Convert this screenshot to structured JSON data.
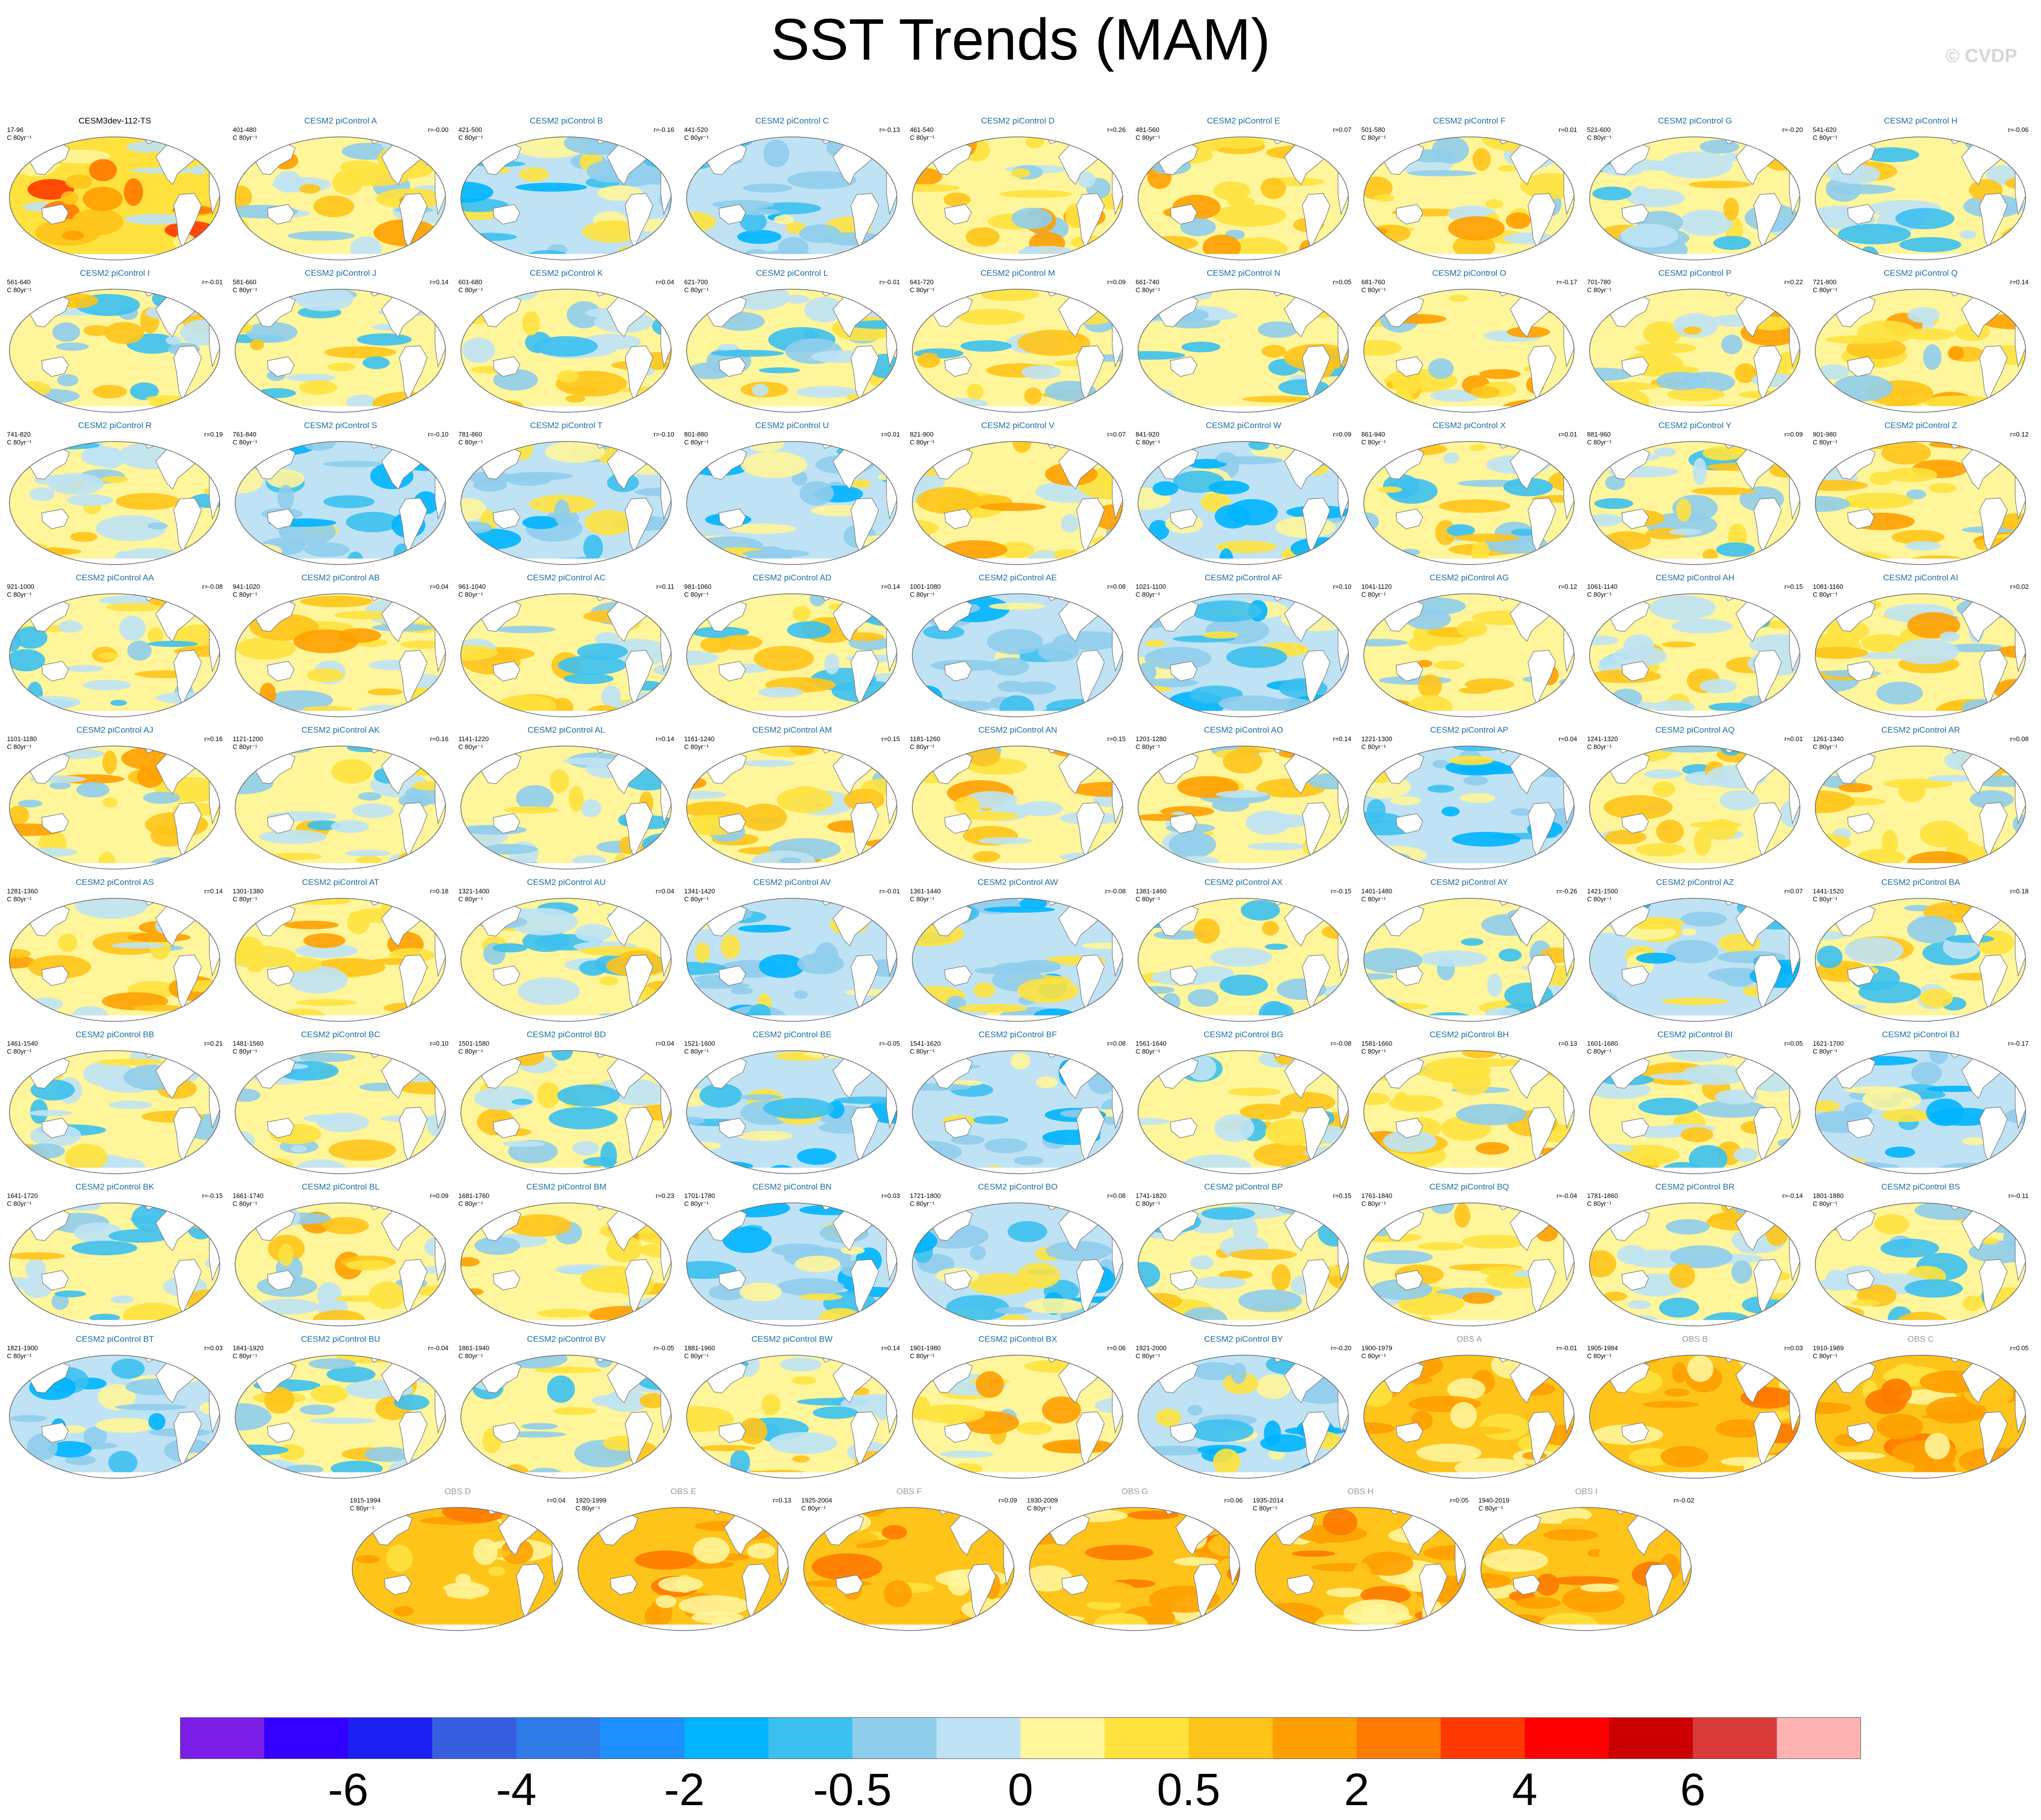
{
  "figure": {
    "title": "SST Trends (MAM)",
    "copyright": "© CVDP"
  },
  "chart_data": {
    "type": "heatmap",
    "title": "SST Trends (MAM)",
    "projection": "global map (Robinson-like), Pacific-centered",
    "units": "C 80yr⁻¹",
    "colorbar": {
      "tick_labels": [
        "-6",
        "-4",
        "-2",
        "-0.5",
        "0",
        "0.5",
        "2",
        "4",
        "6"
      ],
      "tick_positions_boundary_index": [
        2,
        4,
        6,
        8,
        10,
        12,
        14,
        16,
        18
      ],
      "colors": [
        "#7b1fe8",
        "#3300ff",
        "#1a20f2",
        "#385ee0",
        "#2f7be8",
        "#1e90ff",
        "#00b4ff",
        "#3cc0f0",
        "#8fcdec",
        "#bfe3f5",
        "#fff59a",
        "#ffe23e",
        "#ffc41a",
        "#ffa000",
        "#ff7a00",
        "#ff3a00",
        "#ff0000",
        "#cc0000",
        "#d93a3a",
        "#ffb3b3"
      ]
    },
    "panels": [
      {
        "title": "CESM3dev-112-TS",
        "years": "17-96",
        "units": "C 80yr⁻¹",
        "r": "",
        "kind": "cesm3",
        "pattern": "warm"
      },
      {
        "title": "CESM2 piControl A",
        "years": "401-480",
        "units": "C 80yr⁻¹",
        "r": "r=-0.00",
        "kind": "ctrl",
        "pattern": "mixwarm"
      },
      {
        "title": "CESM2 piControl B",
        "years": "421-500",
        "units": "C 80yr⁻¹",
        "r": "r=-0.16",
        "kind": "ctrl",
        "pattern": "cool"
      },
      {
        "title": "CESM2 piControl C",
        "years": "441-520",
        "units": "C 80yr⁻¹",
        "r": "r=-0.13",
        "kind": "ctrl",
        "pattern": "cool"
      },
      {
        "title": "CESM2 piControl D",
        "years": "461-540",
        "units": "C 80yr⁻¹",
        "r": "r=0.26",
        "kind": "ctrl",
        "pattern": "mixwarm"
      },
      {
        "title": "CESM2 piControl E",
        "years": "481-560",
        "units": "C 80yr⁻¹",
        "r": "r=0.07",
        "kind": "ctrl",
        "pattern": "mixwarm"
      },
      {
        "title": "CESM2 piControl F",
        "years": "501-580",
        "units": "C 80yr⁻¹",
        "r": "r=0.01",
        "kind": "ctrl",
        "pattern": "mixwarm"
      },
      {
        "title": "CESM2 piControl G",
        "years": "521-600",
        "units": "C 80yr⁻¹",
        "r": "r=-0.20",
        "kind": "ctrl",
        "pattern": "mix"
      },
      {
        "title": "CESM2 piControl H",
        "years": "541-620",
        "units": "C 80yr⁻¹",
        "r": "r=-0.06",
        "kind": "ctrl",
        "pattern": "mix"
      },
      {
        "title": "CESM2 piControl I",
        "years": "561-640",
        "units": "C 80yr⁻¹",
        "r": "r=-0.01",
        "kind": "ctrl",
        "pattern": "mix"
      },
      {
        "title": "CESM2 piControl J",
        "years": "581-660",
        "units": "C 80yr⁻¹",
        "r": "r=0.14",
        "kind": "ctrl",
        "pattern": "mix"
      },
      {
        "title": "CESM2 piControl K",
        "years": "601-680",
        "units": "C 80yr⁻¹",
        "r": "r=0.04",
        "kind": "ctrl",
        "pattern": "mix"
      },
      {
        "title": "CESM2 piControl L",
        "years": "621-700",
        "units": "C 80yr⁻¹",
        "r": "r=-0.01",
        "kind": "ctrl",
        "pattern": "mix"
      },
      {
        "title": "CESM2 piControl M",
        "years": "641-720",
        "units": "C 80yr⁻¹",
        "r": "r=0.09",
        "kind": "ctrl",
        "pattern": "mix"
      },
      {
        "title": "CESM2 piControl N",
        "years": "661-740",
        "units": "C 80yr⁻¹",
        "r": "r=0.05",
        "kind": "ctrl",
        "pattern": "mix"
      },
      {
        "title": "CESM2 piControl O",
        "years": "681-760",
        "units": "C 80yr⁻¹",
        "r": "r=-0.17",
        "kind": "ctrl",
        "pattern": "mixwarm"
      },
      {
        "title": "CESM2 piControl P",
        "years": "701-780",
        "units": "C 80yr⁻¹",
        "r": "r=0.22",
        "kind": "ctrl",
        "pattern": "mixwarm"
      },
      {
        "title": "CESM2 piControl Q",
        "years": "721-800",
        "units": "C 80yr⁻¹",
        "r": "r=0.14",
        "kind": "ctrl",
        "pattern": "mixwarm"
      },
      {
        "title": "CESM2 piControl R",
        "years": "741-820",
        "units": "C 80yr⁻¹",
        "r": "r=0.19",
        "kind": "ctrl",
        "pattern": "mix"
      },
      {
        "title": "CESM2 piControl S",
        "years": "761-840",
        "units": "C 80yr⁻¹",
        "r": "r=-0.10",
        "kind": "ctrl",
        "pattern": "cool"
      },
      {
        "title": "CESM2 piControl T",
        "years": "781-860",
        "units": "C 80yr⁻¹",
        "r": "r=-0.10",
        "kind": "ctrl",
        "pattern": "cool"
      },
      {
        "title": "CESM2 piControl U",
        "years": "801-880",
        "units": "C 80yr⁻¹",
        "r": "r=0.01",
        "kind": "ctrl",
        "pattern": "cool"
      },
      {
        "title": "CESM2 piControl V",
        "years": "821-900",
        "units": "C 80yr⁻¹",
        "r": "r=0.07",
        "kind": "ctrl",
        "pattern": "mixwarm"
      },
      {
        "title": "CESM2 piControl W",
        "years": "841-920",
        "units": "C 80yr⁻¹",
        "r": "r=0.09",
        "kind": "ctrl",
        "pattern": "cool"
      },
      {
        "title": "CESM2 piControl X",
        "years": "861-940",
        "units": "C 80yr⁻¹",
        "r": "r=0.01",
        "kind": "ctrl",
        "pattern": "mix"
      },
      {
        "title": "CESM2 piControl Y",
        "years": "881-960",
        "units": "C 80yr⁻¹",
        "r": "r=0.09",
        "kind": "ctrl",
        "pattern": "mix"
      },
      {
        "title": "CESM2 piControl Z",
        "years": "901-980",
        "units": "C 80yr⁻¹",
        "r": "r=0.12",
        "kind": "ctrl",
        "pattern": "mixwarm"
      },
      {
        "title": "CESM2 piControl AA",
        "years": "921-1000",
        "units": "C 80yr⁻¹",
        "r": "r=-0.08",
        "kind": "ctrl",
        "pattern": "mix"
      },
      {
        "title": "CESM2 piControl AB",
        "years": "941-1020",
        "units": "C 80yr⁻¹",
        "r": "r=0.04",
        "kind": "ctrl",
        "pattern": "mixwarm"
      },
      {
        "title": "CESM2 piControl AC",
        "years": "961-1040",
        "units": "C 80yr⁻¹",
        "r": "r=0.11",
        "kind": "ctrl",
        "pattern": "mix"
      },
      {
        "title": "CESM2 piControl AD",
        "years": "981-1060",
        "units": "C 80yr⁻¹",
        "r": "r=0.14",
        "kind": "ctrl",
        "pattern": "mix"
      },
      {
        "title": "CESM2 piControl AE",
        "years": "1001-1080",
        "units": "C 80yr⁻¹",
        "r": "r=0.08",
        "kind": "ctrl",
        "pattern": "cool"
      },
      {
        "title": "CESM2 piControl AF",
        "years": "1021-1100",
        "units": "C 80yr⁻¹",
        "r": "r=0.10",
        "kind": "ctrl",
        "pattern": "cool"
      },
      {
        "title": "CESM2 piControl AG",
        "years": "1041-1120",
        "units": "C 80yr⁻¹",
        "r": "r=0.12",
        "kind": "ctrl",
        "pattern": "mixwarm"
      },
      {
        "title": "CESM2 piControl AH",
        "years": "1061-1140",
        "units": "C 80yr⁻¹",
        "r": "r=0.15",
        "kind": "ctrl",
        "pattern": "mix"
      },
      {
        "title": "CESM2 piControl AI",
        "years": "1081-1160",
        "units": "C 80yr⁻¹",
        "r": "r=0.02",
        "kind": "ctrl",
        "pattern": "mixwarm"
      },
      {
        "title": "CESM2 piControl AJ",
        "years": "1101-1180",
        "units": "C 80yr⁻¹",
        "r": "r=0.16",
        "kind": "ctrl",
        "pattern": "mixwarm"
      },
      {
        "title": "CESM2 piControl AK",
        "years": "1121-1200",
        "units": "C 80yr⁻¹",
        "r": "r=0.16",
        "kind": "ctrl",
        "pattern": "mix"
      },
      {
        "title": "CESM2 piControl AL",
        "years": "1141-1220",
        "units": "C 80yr⁻¹",
        "r": "r=0.14",
        "kind": "ctrl",
        "pattern": "mix"
      },
      {
        "title": "CESM2 piControl AM",
        "years": "1161-1240",
        "units": "C 80yr⁻¹",
        "r": "r=0.15",
        "kind": "ctrl",
        "pattern": "mixwarm"
      },
      {
        "title": "CESM2 piControl AN",
        "years": "1181-1260",
        "units": "C 80yr⁻¹",
        "r": "r=0.15",
        "kind": "ctrl",
        "pattern": "mixwarm"
      },
      {
        "title": "CESM2 piControl AO",
        "years": "1201-1280",
        "units": "C 80yr⁻¹",
        "r": "r=0.14",
        "kind": "ctrl",
        "pattern": "mixwarm"
      },
      {
        "title": "CESM2 piControl AP",
        "years": "1221-1300",
        "units": "C 80yr⁻¹",
        "r": "r=0.04",
        "kind": "ctrl",
        "pattern": "cool"
      },
      {
        "title": "CESM2 piControl AQ",
        "years": "1241-1320",
        "units": "C 80yr⁻¹",
        "r": "r=0.01",
        "kind": "ctrl",
        "pattern": "mix"
      },
      {
        "title": "CESM2 piControl AR",
        "years": "1261-1340",
        "units": "C 80yr⁻¹",
        "r": "r=0.08",
        "kind": "ctrl",
        "pattern": "mixwarm"
      },
      {
        "title": "CESM2 piControl AS",
        "years": "1281-1360",
        "units": "C 80yr⁻¹",
        "r": "r=0.14",
        "kind": "ctrl",
        "pattern": "mixwarm"
      },
      {
        "title": "CESM2 piControl AT",
        "years": "1301-1380",
        "units": "C 80yr⁻¹",
        "r": "r=0.18",
        "kind": "ctrl",
        "pattern": "mixwarm"
      },
      {
        "title": "CESM2 piControl AU",
        "years": "1321-1400",
        "units": "C 80yr⁻¹",
        "r": "r=0.04",
        "kind": "ctrl",
        "pattern": "mix"
      },
      {
        "title": "CESM2 piControl AV",
        "years": "1341-1420",
        "units": "C 80yr⁻¹",
        "r": "r=-0.01",
        "kind": "ctrl",
        "pattern": "cool"
      },
      {
        "title": "CESM2 piControl AW",
        "years": "1361-1440",
        "units": "C 80yr⁻¹",
        "r": "r=-0.08",
        "kind": "ctrl",
        "pattern": "cool"
      },
      {
        "title": "CESM2 piControl AX",
        "years": "1381-1460",
        "units": "C 80yr⁻¹",
        "r": "r=-0.15",
        "kind": "ctrl",
        "pattern": "mix"
      },
      {
        "title": "CESM2 piControl AY",
        "years": "1401-1480",
        "units": "C 80yr⁻¹",
        "r": "r=-0.26",
        "kind": "ctrl",
        "pattern": "mix"
      },
      {
        "title": "CESM2 piControl AZ",
        "years": "1421-1500",
        "units": "C 80yr⁻¹",
        "r": "r=0.07",
        "kind": "ctrl",
        "pattern": "cool"
      },
      {
        "title": "CESM2 piControl BA",
        "years": "1441-1520",
        "units": "C 80yr⁻¹",
        "r": "r=0.18",
        "kind": "ctrl",
        "pattern": "mix"
      },
      {
        "title": "CESM2 piControl BB",
        "years": "1461-1540",
        "units": "C 80yr⁻¹",
        "r": "r=0.21",
        "kind": "ctrl",
        "pattern": "mix"
      },
      {
        "title": "CESM2 piControl BC",
        "years": "1481-1560",
        "units": "C 80yr⁻¹",
        "r": "r=0.10",
        "kind": "ctrl",
        "pattern": "mix"
      },
      {
        "title": "CESM2 piControl BD",
        "years": "1501-1580",
        "units": "C 80yr⁻¹",
        "r": "r=0.04",
        "kind": "ctrl",
        "pattern": "mix"
      },
      {
        "title": "CESM2 piControl BE",
        "years": "1521-1600",
        "units": "C 80yr⁻¹",
        "r": "r=-0.05",
        "kind": "ctrl",
        "pattern": "cool"
      },
      {
        "title": "CESM2 piControl BF",
        "years": "1541-1620",
        "units": "C 80yr⁻¹",
        "r": "r=0.08",
        "kind": "ctrl",
        "pattern": "cool"
      },
      {
        "title": "CESM2 piControl BG",
        "years": "1561-1640",
        "units": "C 80yr⁻¹",
        "r": "r=-0.08",
        "kind": "ctrl",
        "pattern": "mix"
      },
      {
        "title": "CESM2 piControl BH",
        "years": "1581-1660",
        "units": "C 80yr⁻¹",
        "r": "r=0.13",
        "kind": "ctrl",
        "pattern": "mixwarm"
      },
      {
        "title": "CESM2 piControl BI",
        "years": "1601-1680",
        "units": "C 80yr⁻¹",
        "r": "r=0.05",
        "kind": "ctrl",
        "pattern": "mix"
      },
      {
        "title": "CESM2 piControl BJ",
        "years": "1621-1700",
        "units": "C 80yr⁻¹",
        "r": "r=-0.17",
        "kind": "ctrl",
        "pattern": "cool"
      },
      {
        "title": "CESM2 piControl BK",
        "years": "1641-1720",
        "units": "C 80yr⁻¹",
        "r": "r=-0.15",
        "kind": "ctrl",
        "pattern": "mix"
      },
      {
        "title": "CESM2 piControl BL",
        "years": "1661-1740",
        "units": "C 80yr⁻¹",
        "r": "r=0.09",
        "kind": "ctrl",
        "pattern": "mixwarm"
      },
      {
        "title": "CESM2 piControl BM",
        "years": "1681-1760",
        "units": "C 80yr⁻¹",
        "r": "r=0.23",
        "kind": "ctrl",
        "pattern": "mixwarm"
      },
      {
        "title": "CESM2 piControl BN",
        "years": "1701-1780",
        "units": "C 80yr⁻¹",
        "r": "r=0.03",
        "kind": "ctrl",
        "pattern": "cool"
      },
      {
        "title": "CESM2 piControl BO",
        "years": "1721-1800",
        "units": "C 80yr⁻¹",
        "r": "r=0.08",
        "kind": "ctrl",
        "pattern": "cool"
      },
      {
        "title": "CESM2 piControl BP",
        "years": "1741-1820",
        "units": "C 80yr⁻¹",
        "r": "r=0.15",
        "kind": "ctrl",
        "pattern": "mix"
      },
      {
        "title": "CESM2 piControl BQ",
        "years": "1761-1840",
        "units": "C 80yr⁻¹",
        "r": "r=-0.04",
        "kind": "ctrl",
        "pattern": "mixwarm"
      },
      {
        "title": "CESM2 piControl BR",
        "years": "1781-1860",
        "units": "C 80yr⁻¹",
        "r": "r=-0.14",
        "kind": "ctrl",
        "pattern": "mix"
      },
      {
        "title": "CESM2 piControl BS",
        "years": "1801-1880",
        "units": "C 80yr⁻¹",
        "r": "r=-0.11",
        "kind": "ctrl",
        "pattern": "mix"
      },
      {
        "title": "CESM2 piControl BT",
        "years": "1821-1900",
        "units": "C 80yr⁻¹",
        "r": "r=0.03",
        "kind": "ctrl",
        "pattern": "cool"
      },
      {
        "title": "CESM2 piControl BU",
        "years": "1841-1920",
        "units": "C 80yr⁻¹",
        "r": "r=-0.04",
        "kind": "ctrl",
        "pattern": "mix"
      },
      {
        "title": "CESM2 piControl BV",
        "years": "1861-1940",
        "units": "C 80yr⁻¹",
        "r": "r=-0.05",
        "kind": "ctrl",
        "pattern": "mix"
      },
      {
        "title": "CESM2 piControl BW",
        "years": "1881-1960",
        "units": "C 80yr⁻¹",
        "r": "r=0.14",
        "kind": "ctrl",
        "pattern": "mix"
      },
      {
        "title": "CESM2 piControl BX",
        "years": "1901-1980",
        "units": "C 80yr⁻¹",
        "r": "r=0.06",
        "kind": "ctrl",
        "pattern": "mixwarm"
      },
      {
        "title": "CESM2 piControl BY",
        "years": "1921-2000",
        "units": "C 80yr⁻¹",
        "r": "r=-0.20",
        "kind": "ctrl",
        "pattern": "cool"
      },
      {
        "title": "OBS A",
        "years": "1900-1979",
        "units": "C 80yr⁻¹",
        "r": "r=-0.01",
        "kind": "obs",
        "pattern": "obs"
      },
      {
        "title": "OBS B",
        "years": "1905-1984",
        "units": "C 80yr⁻¹",
        "r": "r=0.03",
        "kind": "obs",
        "pattern": "obs"
      },
      {
        "title": "OBS C",
        "years": "1910-1989",
        "units": "C 80yr⁻¹",
        "r": "r=0.05",
        "kind": "obs",
        "pattern": "obs"
      },
      {
        "title": "OBS D",
        "years": "1915-1994",
        "units": "C 80yr⁻¹",
        "r": "r=0.04",
        "kind": "obs",
        "pattern": "obs"
      },
      {
        "title": "OBS E",
        "years": "1920-1999",
        "units": "C 80yr⁻¹",
        "r": "r=0.13",
        "kind": "obs",
        "pattern": "obs"
      },
      {
        "title": "OBS F",
        "years": "1925-2004",
        "units": "C 80yr⁻¹",
        "r": "r=0.09",
        "kind": "obs",
        "pattern": "obs"
      },
      {
        "title": "OBS G",
        "years": "1930-2009",
        "units": "C 80yr⁻¹",
        "r": "r=0.06",
        "kind": "obs",
        "pattern": "obs"
      },
      {
        "title": "OBS H",
        "years": "1935-2014",
        "units": "C 80yr⁻¹",
        "r": "r=0.05",
        "kind": "obs",
        "pattern": "obs"
      },
      {
        "title": "OBS I",
        "years": "1940-2019",
        "units": "C 80yr⁻¹",
        "r": "r=-0.02",
        "kind": "obs",
        "pattern": "obs"
      }
    ]
  }
}
